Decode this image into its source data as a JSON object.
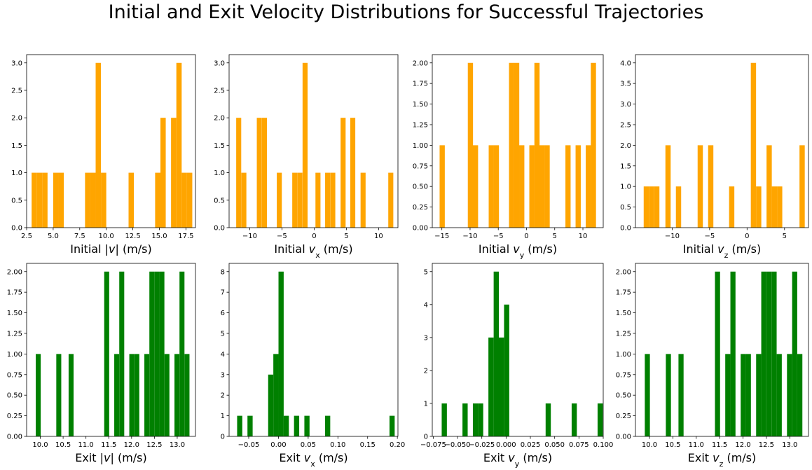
{
  "title": "Initial and Exit Velocity Distributions for Successful Trajectories",
  "colors": {
    "initial": "#ffa500",
    "exit": "#008000"
  },
  "chart_data": [
    {
      "type": "bar",
      "name": "initial-speed",
      "xlabel_parts": [
        {
          "t": "Initial |"
        },
        {
          "t": "v",
          "i": true
        },
        {
          "t": "| (m/s)"
        }
      ],
      "xlim": [
        2.5,
        18.4
      ],
      "ylim": [
        0,
        3.15
      ],
      "xticks": [
        2.5,
        5.0,
        7.5,
        10.0,
        12.5,
        15.0,
        17.5
      ],
      "xtick_labels": [
        "2.5",
        "5.0",
        "7.5",
        "10.0",
        "12.5",
        "15.0",
        "17.5"
      ],
      "yticks": [
        0.0,
        0.5,
        1.0,
        1.5,
        2.0,
        2.5,
        3.0
      ],
      "ytick_labels": [
        "0.0",
        "0.5",
        "1.0",
        "1.5",
        "2.0",
        "2.5",
        "3.0"
      ],
      "bin_width": 0.5,
      "bins": [
        [
          2.97,
          1
        ],
        [
          3.47,
          1
        ],
        [
          3.97,
          1
        ],
        [
          5.0,
          1
        ],
        [
          5.5,
          1
        ],
        [
          8.0,
          1
        ],
        [
          8.5,
          1
        ],
        [
          9.0,
          3
        ],
        [
          9.5,
          1
        ],
        [
          12.1,
          1
        ],
        [
          14.6,
          1
        ],
        [
          15.1,
          2
        ],
        [
          16.1,
          2
        ],
        [
          16.6,
          3
        ],
        [
          17.1,
          1
        ],
        [
          17.6,
          1
        ]
      ],
      "color_key": "initial"
    },
    {
      "type": "bar",
      "name": "initial-vx",
      "xlabel_parts": [
        {
          "t": "Initial "
        },
        {
          "t": "v",
          "i": true
        },
        {
          "t": "x",
          "sub": true
        },
        {
          "t": " (m/s)"
        }
      ],
      "xlim": [
        -13.2,
        13.0
      ],
      "ylim": [
        0,
        3.15
      ],
      "xticks": [
        -10,
        -5,
        0,
        5,
        10
      ],
      "xtick_labels": [
        "−10",
        "−5",
        "0",
        "5",
        "10"
      ],
      "yticks": [
        0.0,
        0.5,
        1.0,
        1.5,
        2.0,
        2.5,
        3.0
      ],
      "ytick_labels": [
        "0.0",
        "0.5",
        "1.0",
        "1.5",
        "2.0",
        "2.5",
        "3.0"
      ],
      "bin_width": 0.78,
      "bins": [
        [
          -12.1,
          2
        ],
        [
          -11.3,
          1
        ],
        [
          -8.9,
          2
        ],
        [
          -8.1,
          2
        ],
        [
          -5.8,
          1
        ],
        [
          -3.4,
          1
        ],
        [
          -2.6,
          1
        ],
        [
          -1.8,
          3
        ],
        [
          0.2,
          1
        ],
        [
          1.7,
          1
        ],
        [
          2.5,
          1
        ],
        [
          4.1,
          2
        ],
        [
          5.6,
          2
        ],
        [
          7.2,
          1
        ],
        [
          11.5,
          1
        ]
      ],
      "color_key": "initial"
    },
    {
      "type": "bar",
      "name": "initial-vy",
      "xlabel_parts": [
        {
          "t": "Initial "
        },
        {
          "t": "v",
          "i": true
        },
        {
          "t": "y",
          "sub": true
        },
        {
          "t": " (m/s)"
        }
      ],
      "xlim": [
        -16.7,
        13.6
      ],
      "ylim": [
        0,
        2.1
      ],
      "xticks": [
        -15,
        -10,
        -5,
        0,
        5,
        10
      ],
      "xtick_labels": [
        "−15",
        "−10",
        "−5",
        "0",
        "5",
        "10"
      ],
      "yticks": [
        0.0,
        0.25,
        0.5,
        0.75,
        1.0,
        1.25,
        1.5,
        1.75,
        2.0
      ],
      "ytick_labels": [
        "0.00",
        "0.25",
        "0.50",
        "0.75",
        "1.00",
        "1.25",
        "1.50",
        "1.75",
        "2.00"
      ],
      "bin_width": 0.92,
      "bins": [
        [
          -15.4,
          1
        ],
        [
          -10.4,
          2
        ],
        [
          -9.5,
          1
        ],
        [
          -6.7,
          1
        ],
        [
          -5.8,
          1
        ],
        [
          -3.1,
          2
        ],
        [
          -2.2,
          2
        ],
        [
          -1.3,
          1
        ],
        [
          0.5,
          1
        ],
        [
          1.4,
          2
        ],
        [
          2.3,
          1
        ],
        [
          3.2,
          1
        ],
        [
          6.9,
          1
        ],
        [
          8.7,
          1
        ],
        [
          10.5,
          1
        ],
        [
          11.4,
          2
        ]
      ],
      "color_key": "initial"
    },
    {
      "type": "bar",
      "name": "initial-vz",
      "xlabel_parts": [
        {
          "t": "Initial "
        },
        {
          "t": "v",
          "i": true
        },
        {
          "t": "z",
          "sub": true
        },
        {
          "t": " (m/s)"
        }
      ],
      "xlim": [
        -14.9,
        8.2
      ],
      "ylim": [
        0,
        4.2
      ],
      "xticks": [
        -10,
        -5,
        0,
        5
      ],
      "xtick_labels": [
        "−10",
        "−5",
        "0",
        "5"
      ],
      "yticks": [
        0.0,
        0.5,
        1.0,
        1.5,
        2.0,
        2.5,
        3.0,
        3.5,
        4.0
      ],
      "ytick_labels": [
        "0.0",
        "0.5",
        "1.0",
        "1.5",
        "2.0",
        "2.5",
        "3.0",
        "3.5",
        "4.0"
      ],
      "bin_width": 0.7,
      "bins": [
        [
          -13.8,
          1
        ],
        [
          -13.1,
          1
        ],
        [
          -12.4,
          1
        ],
        [
          -10.9,
          2
        ],
        [
          -9.5,
          1
        ],
        [
          -6.6,
          2
        ],
        [
          -5.2,
          2
        ],
        [
          -2.4,
          1
        ],
        [
          0.5,
          4
        ],
        [
          1.2,
          1
        ],
        [
          2.6,
          2
        ],
        [
          3.3,
          1
        ],
        [
          4.0,
          1
        ],
        [
          7.0,
          2
        ]
      ],
      "color_key": "initial"
    },
    {
      "type": "bar",
      "name": "exit-speed",
      "xlabel_parts": [
        {
          "t": "Exit |"
        },
        {
          "t": "v",
          "i": true
        },
        {
          "t": "| (m/s)"
        }
      ],
      "xlim": [
        9.7,
        13.4
      ],
      "ylim": [
        0,
        2.1
      ],
      "xticks": [
        10.0,
        10.5,
        11.0,
        11.5,
        12.0,
        12.5,
        13.0
      ],
      "xtick_labels": [
        "10.0",
        "10.5",
        "11.0",
        "11.5",
        "12.0",
        "12.5",
        "13.0"
      ],
      "yticks": [
        0.0,
        0.25,
        0.5,
        0.75,
        1.0,
        1.25,
        1.5,
        1.75,
        2.0
      ],
      "ytick_labels": [
        "0.00",
        "0.25",
        "0.50",
        "0.75",
        "1.00",
        "1.25",
        "1.50",
        "1.75",
        "2.00"
      ],
      "bin_width": 0.109,
      "bins": [
        [
          9.9,
          1
        ],
        [
          10.35,
          1
        ],
        [
          10.62,
          1
        ],
        [
          11.4,
          2
        ],
        [
          11.62,
          1
        ],
        [
          11.73,
          2
        ],
        [
          11.95,
          1
        ],
        [
          12.06,
          1
        ],
        [
          12.28,
          1
        ],
        [
          12.39,
          2
        ],
        [
          12.5,
          2
        ],
        [
          12.61,
          2
        ],
        [
          12.72,
          1
        ],
        [
          12.94,
          1
        ],
        [
          13.05,
          2
        ],
        [
          13.16,
          1
        ]
      ],
      "color_key": "exit"
    },
    {
      "type": "bar",
      "name": "exit-vx",
      "xlabel_parts": [
        {
          "t": "Exit "
        },
        {
          "t": "v",
          "i": true
        },
        {
          "t": "x",
          "sub": true
        },
        {
          "t": " (m/s)"
        }
      ],
      "xlim": [
        -0.083,
        0.201
      ],
      "ylim": [
        0,
        8.4
      ],
      "xticks": [
        -0.05,
        0.0,
        0.05,
        0.1,
        0.15,
        0.2
      ],
      "xtick_labels": [
        "−0.05",
        "0.00",
        "0.05",
        "0.10",
        "0.15",
        "0.20"
      ],
      "yticks": [
        0,
        1,
        2,
        3,
        4,
        5,
        6,
        7,
        8
      ],
      "ytick_labels": [
        "0",
        "1",
        "2",
        "3",
        "4",
        "5",
        "6",
        "7",
        "8"
      ],
      "bin_width": 0.0087,
      "bins": [
        [
          -0.0695,
          1
        ],
        [
          -0.0521,
          1
        ],
        [
          -0.0173,
          3
        ],
        [
          -0.0086,
          4
        ],
        [
          0.0001,
          8
        ],
        [
          0.0088,
          1
        ],
        [
          0.0262,
          1
        ],
        [
          0.0436,
          1
        ],
        [
          0.0784,
          1
        ],
        [
          0.1868,
          1
        ]
      ],
      "color_key": "exit"
    },
    {
      "type": "bar",
      "name": "exit-vy",
      "xlabel_parts": [
        {
          "t": "Exit "
        },
        {
          "t": "v",
          "i": true
        },
        {
          "t": "y",
          "sub": true
        },
        {
          "t": " (m/s)"
        }
      ],
      "xlim": [
        -0.076,
        0.1
      ],
      "ylim": [
        0,
        5.25
      ],
      "xticks": [
        -0.075,
        -0.05,
        -0.025,
        0.0,
        0.025,
        0.05,
        0.075,
        0.1
      ],
      "xtick_labels": [
        "−0.075",
        "−0.050",
        "−0.025",
        "0.000",
        "0.025",
        "0.050",
        "0.075",
        "0.100"
      ],
      "yticks": [
        0,
        1,
        2,
        3,
        4,
        5
      ],
      "ytick_labels": [
        "0",
        "1",
        "2",
        "3",
        "4",
        "5"
      ],
      "bin_width": 0.00535,
      "bins": [
        [
          -0.0663,
          1
        ],
        [
          -0.0449,
          1
        ],
        [
          -0.0342,
          1
        ],
        [
          -0.0289,
          1
        ],
        [
          -0.0182,
          3
        ],
        [
          -0.0128,
          5
        ],
        [
          -0.0075,
          3
        ],
        [
          -0.0021,
          4
        ],
        [
          0.0407,
          1
        ],
        [
          0.0675,
          1
        ],
        [
          0.0942,
          1
        ]
      ],
      "color_key": "exit"
    },
    {
      "type": "bar",
      "name": "exit-vz",
      "xlabel_parts": [
        {
          "t": "Exit "
        },
        {
          "t": "v",
          "i": true
        },
        {
          "t": "z",
          "sub": true
        },
        {
          "t": " (m/s)"
        }
      ],
      "xlim": [
        9.7,
        13.4
      ],
      "ylim": [
        0,
        2.1
      ],
      "xticks": [
        10.0,
        10.5,
        11.0,
        11.5,
        12.0,
        12.5,
        13.0
      ],
      "xtick_labels": [
        "10.0",
        "10.5",
        "11.0",
        "11.5",
        "12.0",
        "12.5",
        "13.0"
      ],
      "yticks": [
        0.0,
        0.25,
        0.5,
        0.75,
        1.0,
        1.25,
        1.5,
        1.75,
        2.0
      ],
      "ytick_labels": [
        "0.00",
        "0.25",
        "0.50",
        "0.75",
        "1.00",
        "1.25",
        "1.50",
        "1.75",
        "2.00"
      ],
      "bin_width": 0.109,
      "bins": [
        [
          9.9,
          1
        ],
        [
          10.35,
          1
        ],
        [
          10.62,
          1
        ],
        [
          11.4,
          2
        ],
        [
          11.62,
          1
        ],
        [
          11.73,
          2
        ],
        [
          11.95,
          1
        ],
        [
          12.06,
          1
        ],
        [
          12.28,
          1
        ],
        [
          12.39,
          2
        ],
        [
          12.5,
          2
        ],
        [
          12.61,
          2
        ],
        [
          12.72,
          1
        ],
        [
          12.94,
          1
        ],
        [
          13.05,
          2
        ],
        [
          13.16,
          1
        ]
      ],
      "color_key": "exit"
    }
  ]
}
